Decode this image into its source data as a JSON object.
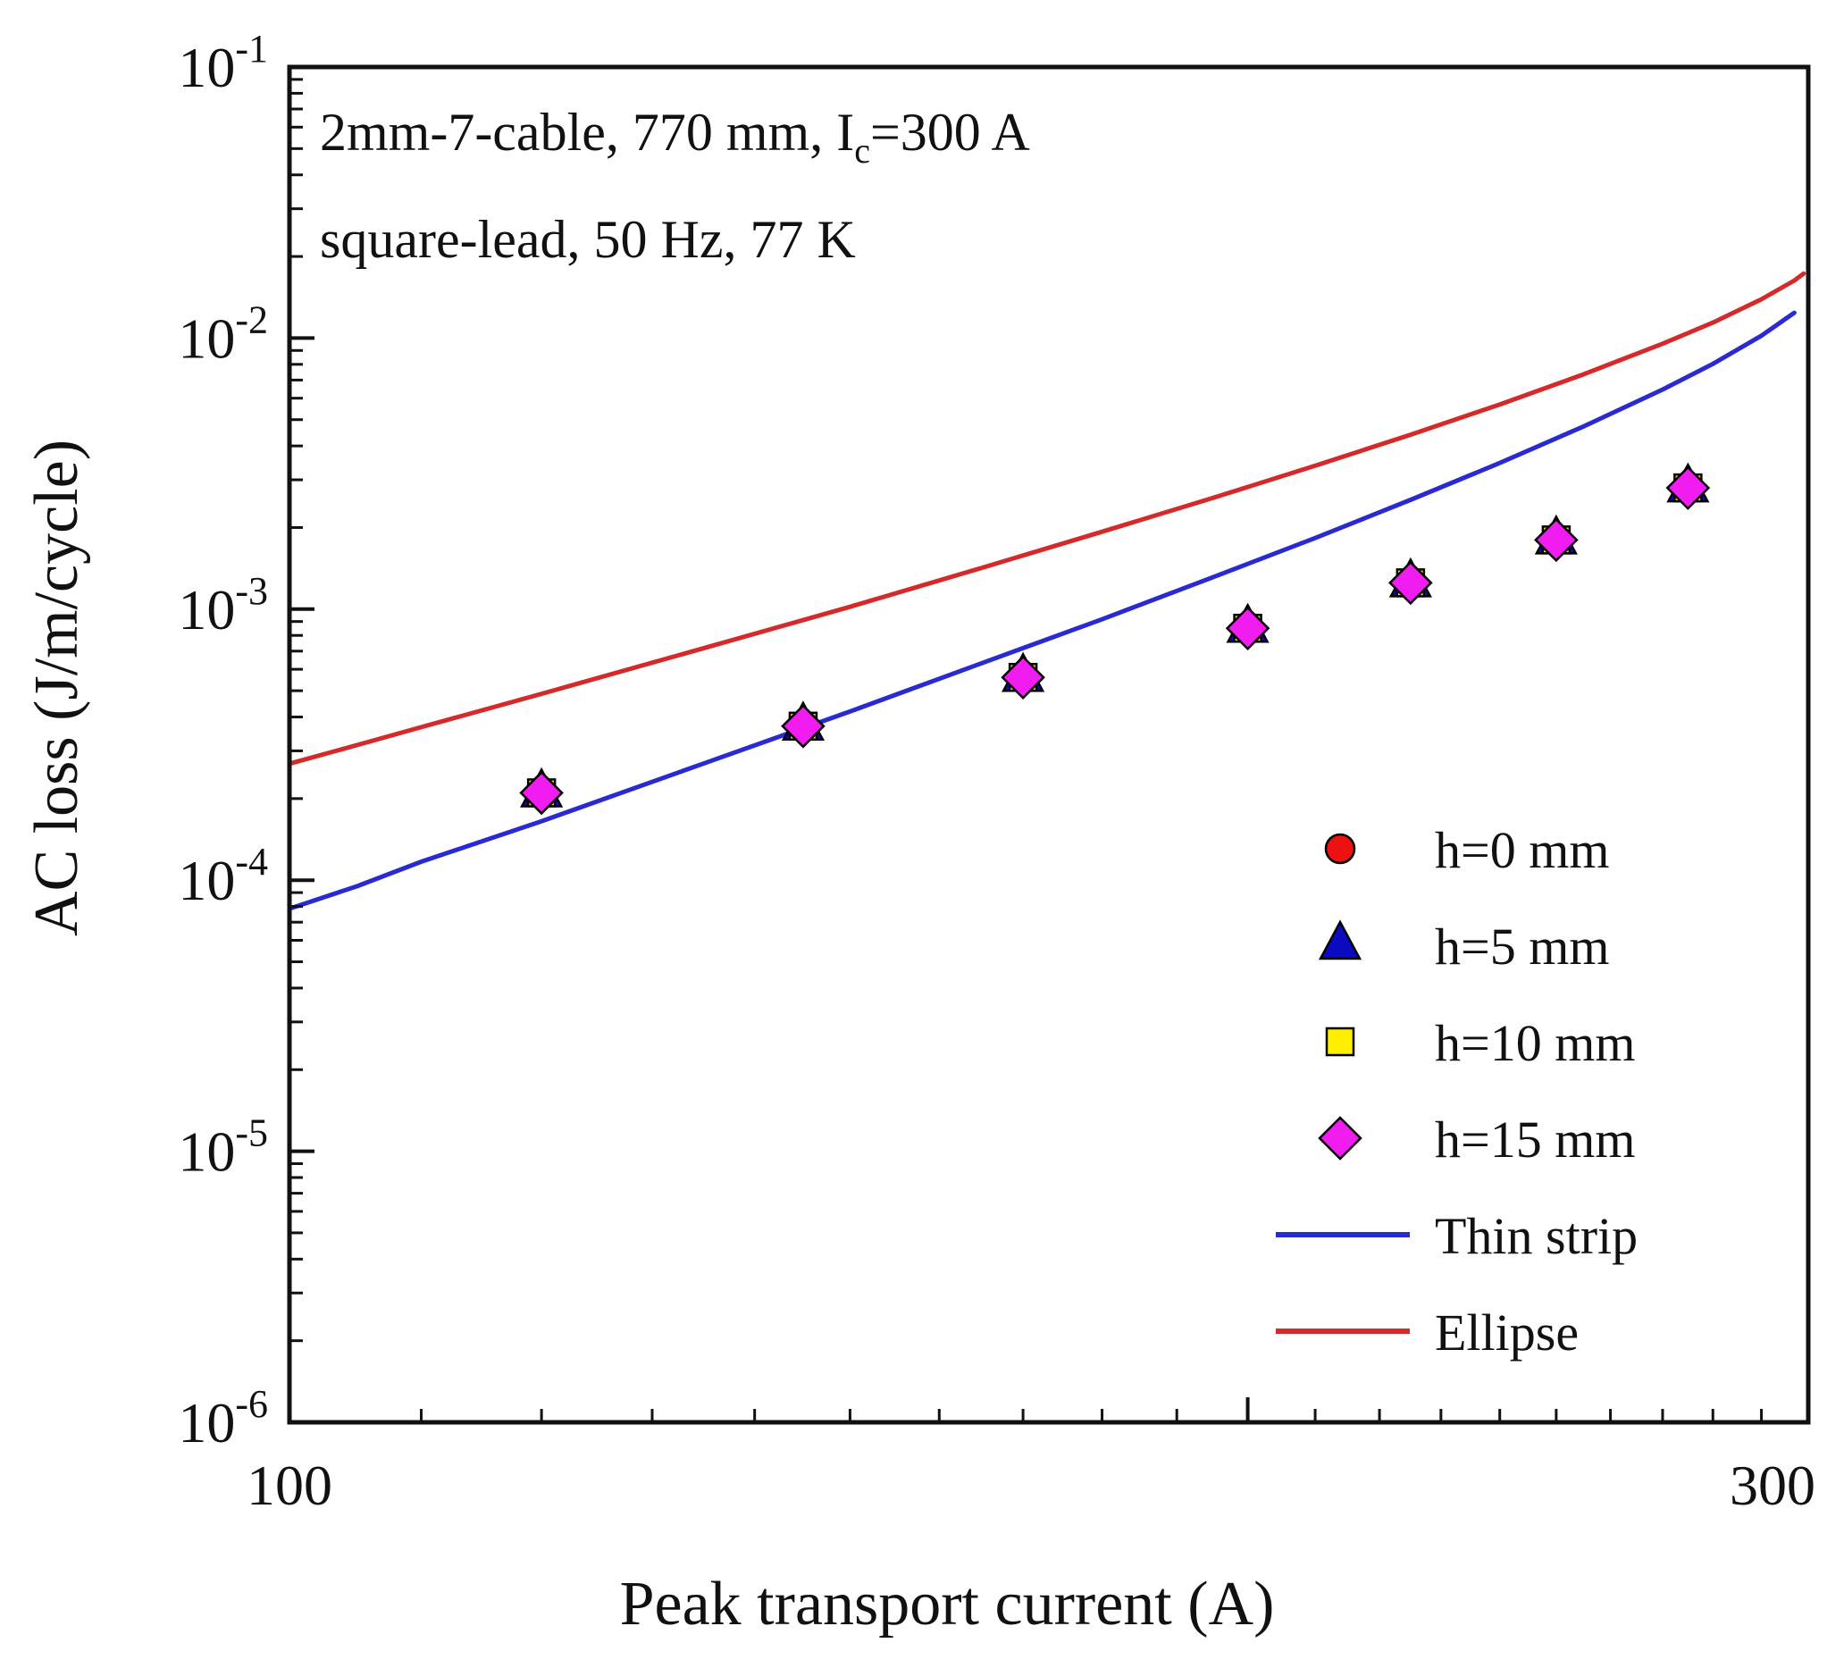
{
  "chart_data": {
    "type": "scatter",
    "x_scale": "log",
    "y_scale": "log",
    "xlim": [
      100,
      300
    ],
    "ylim": [
      1e-06,
      0.1
    ],
    "xlabel": "Peak transport current (A)",
    "ylabel": "AC loss (J/m/cycle)",
    "annotation": {
      "line1_pre": "2mm-7-cable, 770 mm, I",
      "line1_sub": "c",
      "line1_post": "=300 A",
      "line2": "square-lead, 50 Hz, 77 K"
    },
    "x_ticks": {
      "major": [
        100,
        200,
        300
      ],
      "labeled": [
        100,
        300
      ],
      "minor": [
        110,
        120,
        130,
        140,
        150,
        160,
        170,
        180,
        190,
        210,
        220,
        230,
        240,
        250,
        260,
        270,
        280,
        290
      ]
    },
    "y_tick_exponents": [
      -1,
      -2,
      -3,
      -4,
      -5,
      -6
    ],
    "x": [
      120,
      145,
      170,
      200,
      225,
      250,
      275
    ],
    "series": [
      {
        "name": "h=0 mm",
        "marker": "circle",
        "fill": "#ee1111",
        "edge": "#000000",
        "values": [
          0.00021,
          0.00037,
          0.00056,
          0.00085,
          0.00125,
          0.0018,
          0.0028
        ]
      },
      {
        "name": "h=5 mm",
        "marker": "triangle",
        "fill": "#0a0ac0",
        "edge": "#000000",
        "values": [
          0.00021,
          0.00037,
          0.00056,
          0.00085,
          0.00125,
          0.0018,
          0.0028
        ]
      },
      {
        "name": "h=10 mm",
        "marker": "square",
        "fill": "#ffee00",
        "edge": "#000000",
        "values": [
          0.00021,
          0.00037,
          0.00056,
          0.00085,
          0.00125,
          0.0018,
          0.0028
        ]
      },
      {
        "name": "h=15 mm",
        "marker": "diamond",
        "fill": "#f01cf0",
        "edge": "#000000",
        "values": [
          0.00021,
          0.00037,
          0.00056,
          0.00085,
          0.00125,
          0.0018,
          0.0028
        ]
      }
    ],
    "lines": [
      {
        "name": "Thin strip",
        "color": "#2a2ad2",
        "points": [
          [
            100,
            7.85e-05
          ],
          [
            105,
            9.5e-05
          ],
          [
            110,
            0.000117
          ],
          [
            120,
            0.000165
          ],
          [
            135,
            0.00027
          ],
          [
            150,
            0.000419
          ],
          [
            165,
            0.000632
          ],
          [
            180,
            0.000917
          ],
          [
            195,
            0.00131
          ],
          [
            210,
            0.00183
          ],
          [
            225,
            0.00253
          ],
          [
            240,
            0.00346
          ],
          [
            255,
            0.00472
          ],
          [
            270,
            0.00646
          ],
          [
            280,
            0.00803
          ],
          [
            290,
            0.0102
          ],
          [
            297,
            0.0124
          ]
        ]
      },
      {
        "name": "Ellipse",
        "color": "#d42a2a",
        "points": [
          [
            100,
            0.000269
          ],
          [
            105,
            0.000315
          ],
          [
            110,
            0.000367
          ],
          [
            120,
            0.000487
          ],
          [
            135,
            0.000719
          ],
          [
            150,
            0.00102
          ],
          [
            165,
            0.00142
          ],
          [
            180,
            0.00193
          ],
          [
            195,
            0.00257
          ],
          [
            210,
            0.00338
          ],
          [
            225,
            0.0044
          ],
          [
            240,
            0.00569
          ],
          [
            255,
            0.00735
          ],
          [
            270,
            0.00953
          ],
          [
            280,
            0.0114
          ],
          [
            290,
            0.0139
          ],
          [
            297,
            0.0163
          ],
          [
            299,
            0.0173
          ]
        ]
      }
    ],
    "legend": {
      "position": "lower-right",
      "entries": [
        {
          "label": "h=0 mm",
          "swatch": "circle",
          "color": "#ee1111"
        },
        {
          "label": "h=5 mm",
          "swatch": "triangle",
          "color": "#0a0ac0"
        },
        {
          "label": "h=10 mm",
          "swatch": "square",
          "color": "#ffee00"
        },
        {
          "label": "h=15 mm",
          "swatch": "diamond",
          "color": "#f01cf0"
        },
        {
          "label": "Thin strip",
          "swatch": "line",
          "color": "#2a2ad2"
        },
        {
          "label": "Ellipse",
          "swatch": "line",
          "color": "#d42a2a"
        }
      ]
    },
    "frame_color": "#111111"
  }
}
